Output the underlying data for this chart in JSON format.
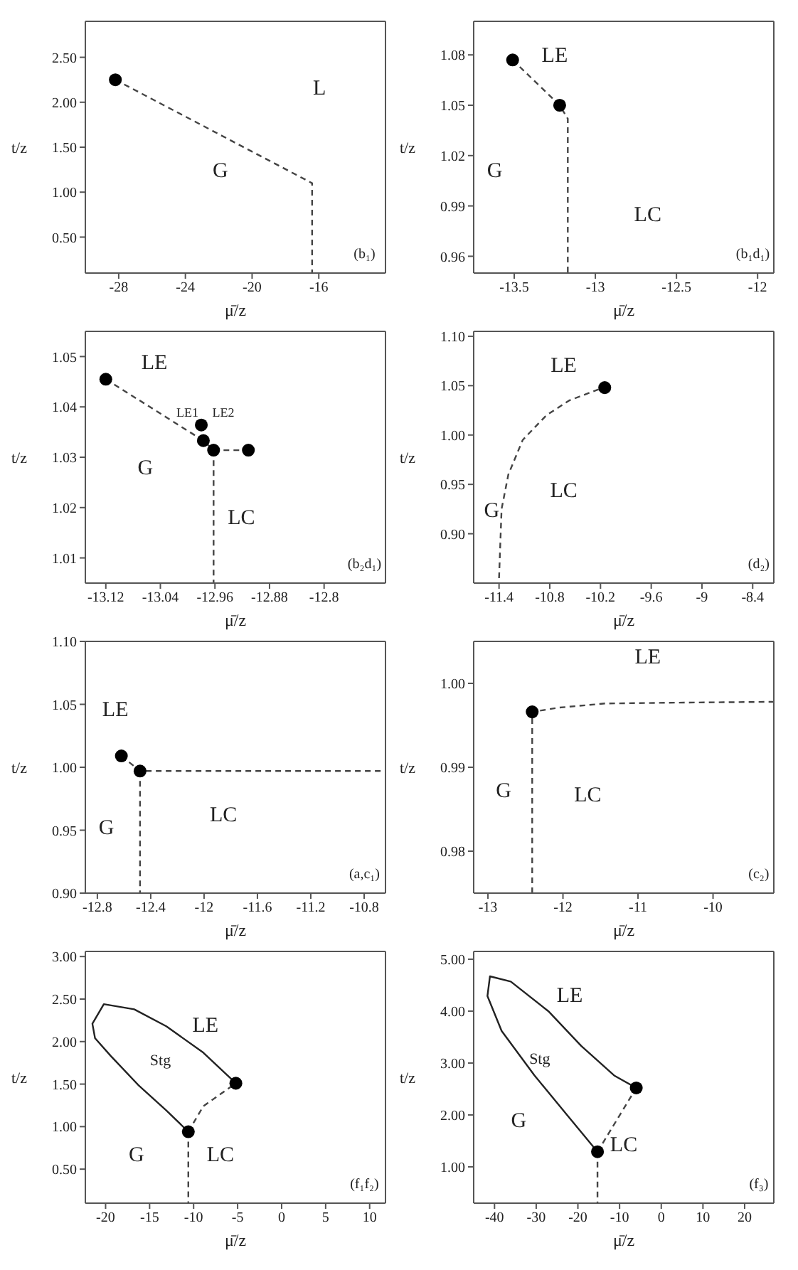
{
  "chart_data": [
    {
      "type": "line",
      "xlabel": "μ̄/z",
      "ylabel": "t/z",
      "xlim": [
        -30,
        -12
      ],
      "xticks": [
        -28,
        -24,
        -20,
        -16
      ],
      "ylim": [
        0.1,
        2.9
      ],
      "yticks": [
        {
          "value": 0.5,
          "label": "0.50"
        },
        {
          "value": 1,
          "label": "1.00"
        },
        {
          "value": 1.5,
          "label": "1.50"
        },
        {
          "value": 2,
          "label": "2.00"
        },
        {
          "value": 2.5,
          "label": "2.50"
        }
      ],
      "grid": false,
      "annotations": [
        "(b₁)",
        "G",
        "L"
      ],
      "series": [
        {
          "type": "line",
          "line_style": "dashed",
          "marker": "none",
          "color": "#444444",
          "x": [
            -28.2,
            -16.4,
            -16.4
          ],
          "values": [
            2.25,
            1.1,
            0.1
          ]
        },
        {
          "type": "scatter",
          "marker": "circle",
          "color": "#000000",
          "x": [
            -28.2
          ],
          "values": [
            2.25
          ]
        }
      ]
    },
    {
      "type": "line",
      "xlabel": "μ̄/z",
      "ylabel": "t/z",
      "xlim": [
        -13.75,
        -11.9
      ],
      "xticks": [
        -13.5,
        -13,
        -12.5,
        -12
      ],
      "ylim": [
        0.95,
        1.1
      ],
      "yticks": [
        {
          "value": 0.96,
          "label": "0.96"
        },
        {
          "value": 0.99,
          "label": "0.99"
        },
        {
          "value": 1.02,
          "label": "1.02"
        },
        {
          "value": 1.05,
          "label": "1.05"
        },
        {
          "value": 1.08,
          "label": "1.08"
        }
      ],
      "grid": false,
      "annotations": [
        "(b₁d₁)",
        "LE",
        "G",
        "LC"
      ],
      "series": [
        {
          "type": "line",
          "line_style": "dashed",
          "marker": "none",
          "color": "#444444",
          "x": [
            -13.51,
            -13.22,
            -13.17,
            -13.17
          ],
          "values": [
            1.077,
            1.05,
            1.042,
            0.95
          ]
        },
        {
          "type": "scatter",
          "marker": "circle",
          "color": "#000000",
          "x": [
            -13.51,
            -13.22
          ],
          "values": [
            1.077,
            1.05
          ]
        }
      ]
    },
    {
      "type": "line",
      "xlabel": "μ̄/z",
      "ylabel": "t/z",
      "xlim": [
        -13.15,
        -12.71
      ],
      "xticks": [
        -13.12,
        -13.04,
        -12.96,
        -12.88,
        -12.8
      ],
      "ylim": [
        1.005,
        1.055
      ],
      "yticks": [
        {
          "value": 1.01,
          "label": "1.01"
        },
        {
          "value": 1.02,
          "label": "1.02"
        },
        {
          "value": 1.03,
          "label": "1.03"
        },
        {
          "value": 1.04,
          "label": "1.04"
        },
        {
          "value": 1.05,
          "label": "1.05"
        }
      ],
      "grid": false,
      "annotations": [
        "(b₂d₁)",
        "LE",
        "G",
        "LC",
        "LE1",
        "LE2"
      ],
      "series": [
        {
          "type": "line",
          "line_style": "dashed",
          "marker": "none",
          "color": "#444444",
          "x": [
            -13.12,
            -12.977,
            -12.962,
            -12.962
          ],
          "values": [
            1.0455,
            1.0333,
            1.0314,
            1.005
          ]
        },
        {
          "type": "line",
          "line_style": "dashed",
          "marker": "none",
          "color": "#444444",
          "x": [
            -12.962,
            -12.911
          ],
          "values": [
            1.0314,
            1.0314
          ]
        },
        {
          "type": "scatter",
          "marker": "circle",
          "color": "#000000",
          "x": [
            -13.12,
            -12.98,
            -12.977,
            -12.962,
            -12.911
          ],
          "values": [
            1.0455,
            1.0364,
            1.0333,
            1.0314,
            1.0314
          ]
        }
      ]
    },
    {
      "type": "line",
      "xlabel": "μ̄/z",
      "ylabel": "t/z",
      "xlim": [
        -11.7,
        -8.15
      ],
      "xticks": [
        -11.4,
        -10.8,
        -10.2,
        -9.6,
        -9,
        -8.4
      ],
      "ylim": [
        0.85,
        1.105
      ],
      "yticks": [
        {
          "value": 0.9,
          "label": "0.90"
        },
        {
          "value": 0.95,
          "label": "0.95"
        },
        {
          "value": 1,
          "label": "1.00"
        },
        {
          "value": 1.05,
          "label": "1.05"
        },
        {
          "value": 1.1,
          "label": "1.10"
        }
      ],
      "grid": false,
      "annotations": [
        "(d₂)",
        "LE",
        "G",
        "LC"
      ],
      "series": [
        {
          "type": "line",
          "line_style": "dashed",
          "marker": "none",
          "color": "#444444",
          "x": [
            -11.4,
            -11.37,
            -11.29,
            -11.12,
            -10.84,
            -10.57,
            -10.23,
            -10.15
          ],
          "values": [
            0.855,
            0.925,
            0.96,
            0.995,
            1.02,
            1.035,
            1.046,
            1.048
          ]
        },
        {
          "type": "scatter",
          "marker": "circle",
          "color": "#000000",
          "x": [
            -10.15
          ],
          "values": [
            1.048
          ]
        }
      ]
    },
    {
      "type": "line",
      "xlabel": "μ̄/z",
      "ylabel": "t/z",
      "xlim": [
        -12.89,
        -10.64
      ],
      "xticks": [
        -12.8,
        -12.4,
        -12,
        -11.6,
        -11.2,
        -10.8
      ],
      "ylim": [
        0.9,
        1.1
      ],
      "yticks": [
        {
          "value": 0.9,
          "label": "0.90"
        },
        {
          "value": 0.95,
          "label": "0.95"
        },
        {
          "value": 1,
          "label": "1.00"
        },
        {
          "value": 1.05,
          "label": "1.05"
        },
        {
          "value": 1.1,
          "label": "1.10"
        }
      ],
      "grid": false,
      "annotations": [
        "(a,c₁)",
        "LE",
        "G",
        "LC"
      ],
      "series": [
        {
          "type": "line",
          "line_style": "dashed",
          "marker": "none",
          "color": "#444444",
          "x": [
            -12.62,
            -12.48,
            -10.64
          ],
          "values": [
            1.009,
            0.997,
            0.997
          ]
        },
        {
          "type": "line",
          "line_style": "dashed",
          "marker": "none",
          "color": "#444444",
          "x": [
            -12.48,
            -12.48
          ],
          "values": [
            0.997,
            0.9
          ]
        },
        {
          "type": "scatter",
          "marker": "circle",
          "color": "#000000",
          "x": [
            -12.62,
            -12.48
          ],
          "values": [
            1.009,
            0.997
          ]
        }
      ]
    },
    {
      "type": "line",
      "xlabel": "μ̄/z",
      "ylabel": "t/z",
      "xlim": [
        -13.19,
        -9.19
      ],
      "xticks": [
        -13,
        -12,
        -11,
        -10
      ],
      "ylim": [
        0.975,
        1.005
      ],
      "yticks": [
        {
          "value": 0.98,
          "label": "0.98"
        },
        {
          "value": 0.99,
          "label": "0.99"
        },
        {
          "value": 1,
          "label": "1.00"
        }
      ],
      "grid": false,
      "annotations": [
        "(c₂)",
        "LE",
        "G",
        "LC"
      ],
      "series": [
        {
          "type": "line",
          "line_style": "dashed",
          "marker": "none",
          "color": "#444444",
          "x": [
            -12.41,
            -12.41,
            -12.06,
            -11.44,
            -10.5,
            -9.19
          ],
          "values": [
            0.975,
            0.9966,
            0.9971,
            0.9976,
            0.9977,
            0.9978
          ]
        },
        {
          "type": "scatter",
          "marker": "circle",
          "color": "#000000",
          "x": [
            -12.41
          ],
          "values": [
            0.9966
          ]
        }
      ]
    },
    {
      "type": "line",
      "xlabel": "μ̄/z",
      "ylabel": "t/z",
      "xlim": [
        -22.3,
        11.8
      ],
      "xticks": [
        -20,
        -15,
        -10,
        -5,
        0,
        5,
        10
      ],
      "ylim": [
        0.1,
        3.06
      ],
      "yticks": [
        {
          "value": 0.5,
          "label": "0.50"
        },
        {
          "value": 1,
          "label": "1.00"
        },
        {
          "value": 1.5,
          "label": "1.50"
        },
        {
          "value": 2,
          "label": "2.00"
        },
        {
          "value": 2.5,
          "label": "2.50"
        },
        {
          "value": 3,
          "label": "3.00"
        }
      ],
      "grid": false,
      "annotations": [
        "(f₁f₂)",
        "LE",
        "Stg",
        "G",
        "LC"
      ],
      "series": [
        {
          "type": "line",
          "line_style": "solid",
          "marker": "none",
          "color": "#222222",
          "x": [
            -5.2,
            -8.9,
            -13.1,
            -16.75,
            -20.2,
            -21.5,
            -21.2,
            -19.4,
            -16.2,
            -13.1,
            -10.6
          ],
          "values": [
            1.51,
            1.87,
            2.18,
            2.38,
            2.44,
            2.21,
            2.04,
            1.83,
            1.48,
            1.19,
            0.94
          ]
        },
        {
          "type": "line",
          "line_style": "dashed",
          "marker": "none",
          "color": "#444444",
          "x": [
            -10.6,
            -8.9,
            -5.2
          ],
          "values": [
            0.94,
            1.24,
            1.51
          ]
        },
        {
          "type": "line",
          "line_style": "dashed",
          "marker": "none",
          "color": "#444444",
          "x": [
            -10.6,
            -10.6
          ],
          "values": [
            0.94,
            0.1
          ]
        },
        {
          "type": "scatter",
          "marker": "circle",
          "color": "#000000",
          "x": [
            -10.6,
            -5.2
          ],
          "values": [
            0.94,
            1.51
          ]
        }
      ]
    },
    {
      "type": "line",
      "xlabel": "μ̄/z",
      "ylabel": "t/z",
      "xlim": [
        -45,
        27
      ],
      "xticks": [
        -40,
        -30,
        -20,
        -10,
        0,
        10,
        20
      ],
      "ylim": [
        0.3,
        5.15
      ],
      "yticks": [
        {
          "value": 1,
          "label": "1.00"
        },
        {
          "value": 2,
          "label": "2.00"
        },
        {
          "value": 3,
          "label": "3.00"
        },
        {
          "value": 4,
          "label": "4.00"
        },
        {
          "value": 5,
          "label": "5.00"
        }
      ],
      "grid": false,
      "annotations": [
        "(f₃)",
        "LE",
        "Stg",
        "G",
        "LC"
      ],
      "series": [
        {
          "type": "line",
          "line_style": "solid",
          "marker": "none",
          "color": "#222222",
          "x": [
            -6.0,
            -11.3,
            -19.2,
            -27.1,
            -36.1,
            -41.1,
            -41.7,
            -38.3,
            -30.4,
            -22.6,
            -15.3
          ],
          "values": [
            2.52,
            2.76,
            3.33,
            4.0,
            4.57,
            4.67,
            4.29,
            3.62,
            2.76,
            2.0,
            1.29
          ]
        },
        {
          "type": "line",
          "line_style": "dashed",
          "marker": "none",
          "color": "#444444",
          "x": [
            -15.3,
            -6.0
          ],
          "values": [
            1.29,
            2.52
          ]
        },
        {
          "type": "line",
          "line_style": "dashed",
          "marker": "none",
          "color": "#444444",
          "x": [
            -15.3,
            -15.3
          ],
          "values": [
            1.29,
            0.3
          ]
        },
        {
          "type": "scatter",
          "marker": "circle",
          "color": "#000000",
          "x": [
            -15.3,
            -6.0
          ],
          "values": [
            1.29,
            2.52
          ]
        }
      ]
    }
  ]
}
